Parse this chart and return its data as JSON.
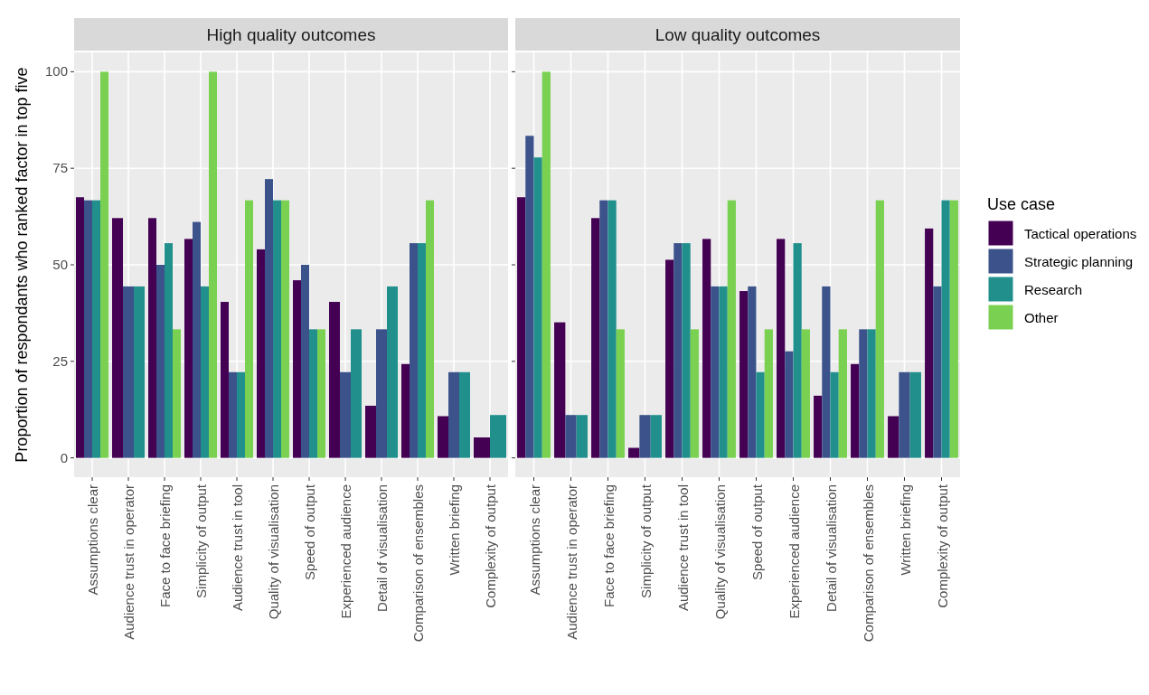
{
  "chart_data": [
    {
      "type": "bar",
      "title": "High quality outcomes",
      "ylabel": "Proportion of respondants who ranked factor in top five",
      "categories": [
        "Assumptions clear",
        "Audience trust in operator",
        "Face to face briefing",
        "Simplicity of output",
        "Audience trust in tool",
        "Quality of visualisation",
        "Speed of output",
        "Experienced audience",
        "Detail of visualisation",
        "Comparison of ensembles",
        "Written briefing",
        "Complexity of output"
      ],
      "ylim": [
        -5,
        105
      ],
      "yticks": [
        0,
        25,
        50,
        75,
        100
      ],
      "grid": true,
      "series": [
        {
          "color": "#440154",
          "values": [
            67.5,
            62.1,
            62.1,
            56.7,
            40.4,
            54.0,
            46.0,
            40.4,
            13.5,
            24.3,
            10.8,
            5.3
          ]
        },
        {
          "color": "#3b528b",
          "values": [
            66.7,
            44.4,
            50.0,
            61.1,
            22.2,
            72.2,
            50.0,
            22.2,
            33.3,
            55.6,
            22.2,
            null
          ]
        },
        {
          "color": "#21908c",
          "values": [
            66.7,
            44.4,
            55.6,
            44.4,
            22.2,
            66.7,
            33.3,
            33.3,
            44.4,
            55.6,
            22.2,
            11.1
          ]
        },
        {
          "color": "#7ad151",
          "values": [
            100,
            null,
            33.3,
            100,
            66.7,
            66.7,
            33.3,
            null,
            null,
            66.7,
            null,
            null
          ]
        }
      ]
    },
    {
      "type": "bar",
      "title": "Low quality outcomes",
      "legend_title": "Use case",
      "legend": "right",
      "tick_labels": "x",
      "categories": [
        "Assumptions clear",
        "Audience trust in operator",
        "Face to face briefing",
        "Simplicity of output",
        "Audience trust in tool",
        "Quality of visualisation",
        "Speed of output",
        "Experienced audience",
        "Detail of visualisation",
        "Comparison of ensembles",
        "Written briefing",
        "Complexity of output"
      ],
      "ylim": [
        -5,
        105
      ],
      "yticks": [
        0,
        25,
        50,
        75,
        100
      ],
      "grid": true,
      "series": [
        {
          "name": "Tactical operations",
          "color": "#440154",
          "values": [
            67.5,
            35.1,
            62.1,
            2.6,
            51.3,
            56.7,
            43.2,
            56.7,
            16.1,
            24.3,
            10.8,
            59.4
          ]
        },
        {
          "name": "Strategic planning",
          "color": "#3b528b",
          "values": [
            83.4,
            11.1,
            66.7,
            11.1,
            55.6,
            44.4,
            44.4,
            27.6,
            44.4,
            33.3,
            22.2,
            44.4
          ]
        },
        {
          "name": "Research",
          "color": "#21908c",
          "values": [
            77.8,
            11.1,
            66.7,
            11.1,
            55.6,
            44.4,
            22.2,
            55.6,
            22.2,
            33.3,
            22.2,
            66.7
          ]
        },
        {
          "name": "Other",
          "color": "#7ad151",
          "values": [
            100,
            null,
            33.3,
            null,
            33.3,
            66.7,
            33.3,
            33.3,
            33.3,
            66.7,
            null,
            66.7
          ]
        }
      ]
    }
  ]
}
